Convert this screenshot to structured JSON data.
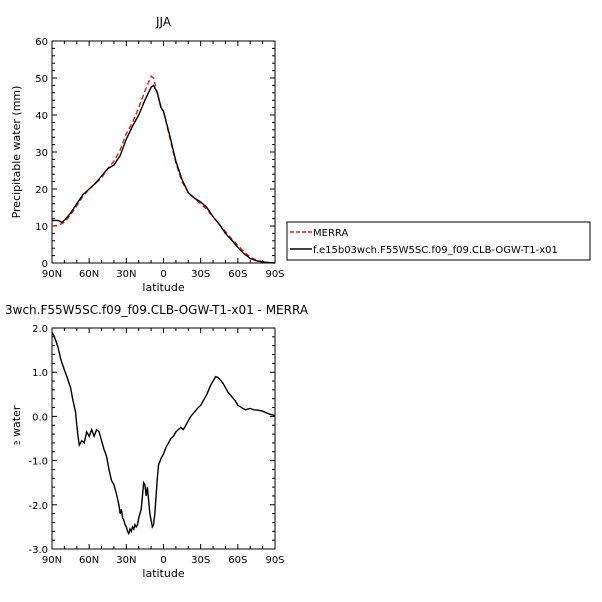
{
  "chart_data": [
    {
      "type": "line",
      "title": "JJA",
      "xlabel": "latitude",
      "ylabel": "Precipitable water (mm)",
      "xlim": [
        -90,
        90
      ],
      "ylim": [
        0,
        60
      ],
      "x_tick_labels": [
        "90N",
        "60N",
        "30N",
        "0",
        "30S",
        "60S",
        "90S"
      ],
      "y_tick_labels": [
        "0",
        "10",
        "20",
        "30",
        "40",
        "50",
        "60"
      ],
      "legend": "right",
      "series": [
        {
          "name": "MERRA",
          "color": "#e41a1c",
          "dash": "dashed",
          "x": [
            -90,
            -85,
            -80,
            -75,
            -70,
            -65,
            -60,
            -55,
            -50,
            -45,
            -40,
            -35,
            -30,
            -25,
            -20,
            -15,
            -10,
            -8,
            -5,
            -2,
            0,
            5,
            10,
            15,
            20,
            25,
            30,
            35,
            40,
            45,
            50,
            55,
            60,
            65,
            70,
            75,
            80,
            85,
            90
          ],
          "y": [
            10,
            10.2,
            11,
            13,
            15.5,
            18,
            20,
            21.5,
            23,
            25.5,
            27.5,
            30.5,
            35,
            38,
            42,
            46.5,
            50.5,
            50,
            46,
            42,
            41,
            34,
            27,
            22,
            19,
            17.5,
            16,
            14.5,
            12.5,
            10.5,
            8.5,
            6.5,
            4.8,
            3,
            1.6,
            0.8,
            0.4,
            0.1,
            0
          ]
        },
        {
          "name": "f.e15b03wch.F55W5SC.f09_f09.CLB-OGW-T1-x01",
          "color": "#000000",
          "dash": "solid",
          "x": [
            -90,
            -85,
            -82,
            -80,
            -75,
            -70,
            -65,
            -60,
            -55,
            -50,
            -45,
            -40,
            -35,
            -30,
            -25,
            -20,
            -15,
            -10,
            -8,
            -5,
            -2,
            0,
            5,
            10,
            15,
            20,
            25,
            30,
            35,
            40,
            45,
            50,
            55,
            60,
            65,
            70,
            75,
            80,
            85,
            90
          ],
          "y": [
            11.5,
            11.5,
            11,
            11.5,
            13.5,
            16,
            18.5,
            20,
            21.5,
            23.5,
            25.5,
            26.5,
            29,
            33.5,
            37,
            40,
            44,
            47.5,
            48,
            46,
            42,
            41,
            34.5,
            27.5,
            22.5,
            19,
            17.5,
            16.5,
            15,
            12.5,
            10.5,
            8,
            6.2,
            4.2,
            2.5,
            1.2,
            0.6,
            0.3,
            0.1,
            0
          ]
        }
      ]
    },
    {
      "type": "line",
      "title": "3wch.F55W5SC.f09_f09.CLB-OGW-T1-x01 - MERRA",
      "xlabel": "latitude",
      "ylabel": "Precipitable water (mm)",
      "xlim": [
        -90,
        90
      ],
      "ylim": [
        -3,
        2
      ],
      "x_tick_labels": [
        "90N",
        "60N",
        "30N",
        "0",
        "30S",
        "60S",
        "90S"
      ],
      "y_tick_labels": [
        "-3.0",
        "-2.0",
        "-1.0",
        "0.0",
        "1.0",
        "2.0"
      ],
      "series": [
        {
          "color": "#000000",
          "dash": "solid",
          "x": [
            -90,
            -88,
            -85,
            -83,
            -80,
            -78,
            -75,
            -73,
            -71,
            -70,
            -69,
            -68,
            -66,
            -64,
            -62,
            -60,
            -58,
            -56,
            -54,
            -52,
            -50,
            -48,
            -46,
            -44,
            -42,
            -40,
            -38,
            -36,
            -35,
            -34,
            -33,
            -32,
            -31,
            -30,
            -29,
            -28,
            -27,
            -26,
            -25,
            -24,
            -23,
            -22,
            -21,
            -20,
            -18,
            -16,
            -15,
            -14,
            -13,
            -12,
            -11,
            -10,
            -9,
            -8,
            -7,
            -6,
            -5,
            -4,
            -2,
            0,
            2,
            4,
            6,
            8,
            10,
            12,
            14,
            16,
            18,
            20,
            22,
            25,
            28,
            30,
            32,
            35,
            38,
            40,
            42,
            44,
            46,
            48,
            50,
            52,
            55,
            58,
            60,
            63,
            66,
            70,
            73,
            76,
            80,
            83,
            86,
            90
          ],
          "y": [
            1.9,
            1.8,
            1.55,
            1.3,
            1.05,
            0.9,
            0.65,
            0.35,
            0.1,
            -0.2,
            -0.45,
            -0.65,
            -0.55,
            -0.6,
            -0.35,
            -0.45,
            -0.3,
            -0.45,
            -0.3,
            -0.35,
            -0.55,
            -0.75,
            -0.9,
            -1.2,
            -1.45,
            -1.55,
            -1.75,
            -2.0,
            -2.2,
            -2.1,
            -2.3,
            -2.35,
            -2.45,
            -2.5,
            -2.6,
            -2.65,
            -2.55,
            -2.6,
            -2.5,
            -2.55,
            -2.45,
            -2.5,
            -2.45,
            -2.3,
            -2.1,
            -1.5,
            -1.55,
            -1.8,
            -1.6,
            -1.9,
            -2.2,
            -2.35,
            -2.5,
            -2.45,
            -2.2,
            -1.8,
            -1.4,
            -1.1,
            -0.95,
            -0.85,
            -0.7,
            -0.6,
            -0.5,
            -0.45,
            -0.35,
            -0.3,
            -0.25,
            -0.3,
            -0.2,
            -0.1,
            0.0,
            0.1,
            0.2,
            0.25,
            0.35,
            0.5,
            0.7,
            0.8,
            0.9,
            0.88,
            0.82,
            0.75,
            0.65,
            0.55,
            0.45,
            0.35,
            0.25,
            0.2,
            0.15,
            0.18,
            0.15,
            0.14,
            0.12,
            0.08,
            0.05,
            0.02
          ]
        }
      ]
    }
  ]
}
